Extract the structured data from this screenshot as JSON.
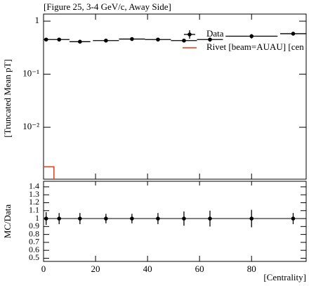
{
  "chart_data": [
    {
      "type": "errorbar",
      "title": "[Figure 25, 3-4 GeV/c, Away Side]",
      "ylabel": "[Truncated Mean pT]",
      "log_y": true,
      "ylim": [
        0.00105,
        1.36
      ],
      "yticks": [
        {
          "value": 0.01,
          "label": "10⁻²"
        },
        {
          "value": 0.1,
          "label": "10⁻¹"
        },
        1
      ],
      "series": [
        {
          "name": "Data",
          "color": "#000000",
          "x": [
            1,
            6,
            14,
            24,
            34,
            44,
            54,
            64,
            80,
            96
          ],
          "xerr": [
            1,
            4,
            4,
            5,
            5,
            5,
            5,
            5,
            10,
            5
          ],
          "values": [
            0.45,
            0.45,
            0.41,
            0.43,
            0.46,
            0.45,
            0.43,
            0.45,
            0.52,
            0.58
          ],
          "errors": [
            0.03,
            0.03,
            0.03,
            0.03,
            0.03,
            0.03,
            0.03,
            0.04,
            0.05,
            0.04
          ]
        },
        {
          "name": "Rivet [beam=AUAU] [cen",
          "color": "#ee3311",
          "type": "step",
          "edges": [
            0,
            4
          ],
          "values": [
            0.0018
          ]
        }
      ]
    },
    {
      "type": "ratio",
      "ylabel": "MC/Data",
      "xlabel": "[Centrality]",
      "xlim": [
        0,
        101
      ],
      "xticks": [
        0,
        20,
        40,
        60,
        80
      ],
      "ylim": [
        0.46,
        1.47
      ],
      "yticks": [
        0.5,
        0.6,
        0.7,
        0.8,
        0.9,
        1,
        1.1,
        1.2,
        1.3,
        1.4
      ],
      "values": [
        1,
        1,
        1,
        1,
        1,
        1,
        1,
        1,
        1,
        1
      ],
      "errors": [
        0.08,
        0.07,
        0.07,
        0.06,
        0.06,
        0.07,
        0.09,
        0.1,
        0.11,
        0.07
      ]
    }
  ]
}
